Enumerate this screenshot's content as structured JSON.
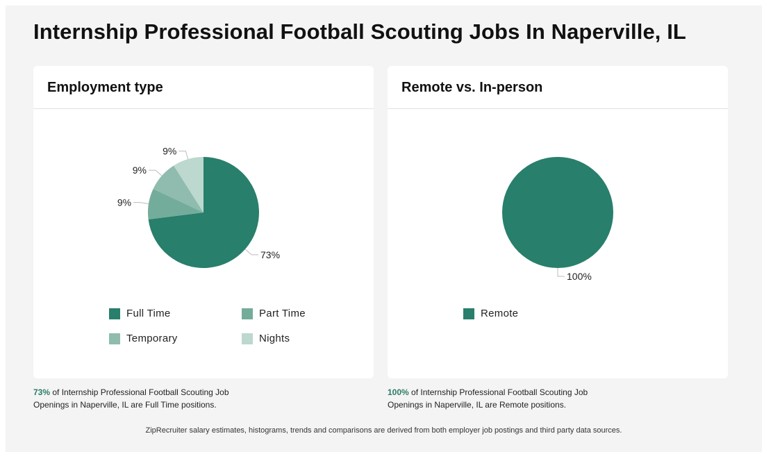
{
  "page": {
    "title": "Internship Professional Football Scouting Jobs In Naperville, IL",
    "footer": "ZipRecruiter salary estimates, histograms, trends and comparisons are derived from both employer job postings and third party data sources."
  },
  "colors": {
    "full_time": "#287f6b",
    "part_time": "#74ac9c",
    "temporary": "#8fbcae",
    "nights": "#bcd8cf",
    "remote": "#287f6b",
    "accent": "#2a7c66"
  },
  "chart_data": [
    {
      "type": "pie",
      "title": "Employment type",
      "categories": [
        "Full Time",
        "Part Time",
        "Temporary",
        "Nights"
      ],
      "values": [
        73,
        9,
        9,
        9
      ],
      "labels": [
        "73%",
        "9%",
        "9%",
        "9%"
      ],
      "legend": "bottom"
    },
    {
      "type": "pie",
      "title": "Remote vs. In-person",
      "categories": [
        "Remote"
      ],
      "values": [
        100
      ],
      "labels": [
        "100%"
      ],
      "legend": "bottom"
    }
  ],
  "captions": {
    "employment": {
      "pct": "73%",
      "text": " of Internship Professional Football Scouting Job Openings in Naperville, IL are Full Time positions."
    },
    "remote": {
      "pct": "100%",
      "text": " of Internship Professional Football Scouting Job Openings in Naperville, IL are Remote positions."
    }
  }
}
